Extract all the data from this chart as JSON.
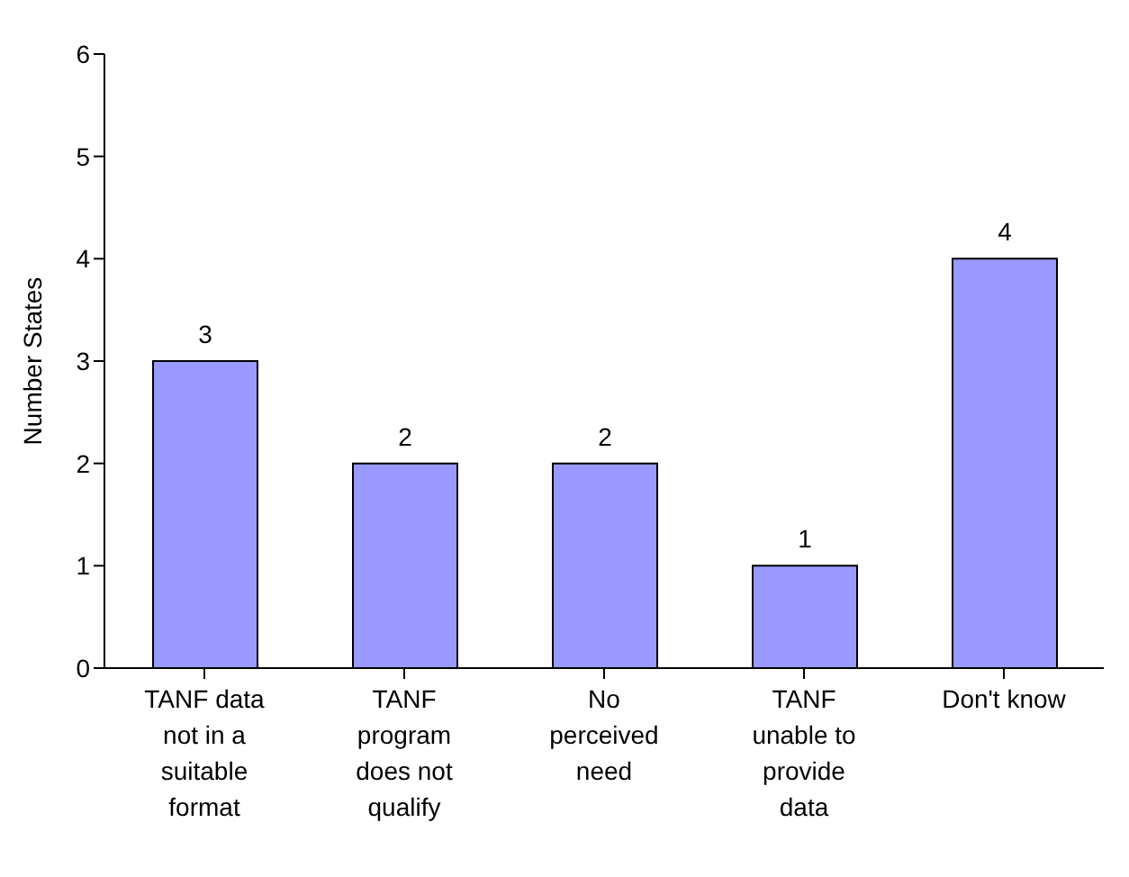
{
  "chart_data": {
    "type": "bar",
    "ylabel": "Number States",
    "categories": [
      "TANF data not in a suitable format",
      "TANF program does not qualify",
      "No perceived need",
      "TANF unable to provide data",
      "Don't know"
    ],
    "values": [
      3,
      2,
      2,
      1,
      4
    ],
    "color": "#9999ff",
    "ylim": [
      0,
      6
    ],
    "yticks": [
      0,
      1,
      2,
      3,
      4,
      5,
      6
    ],
    "grid": false,
    "data_labels": true,
    "legend": false
  }
}
